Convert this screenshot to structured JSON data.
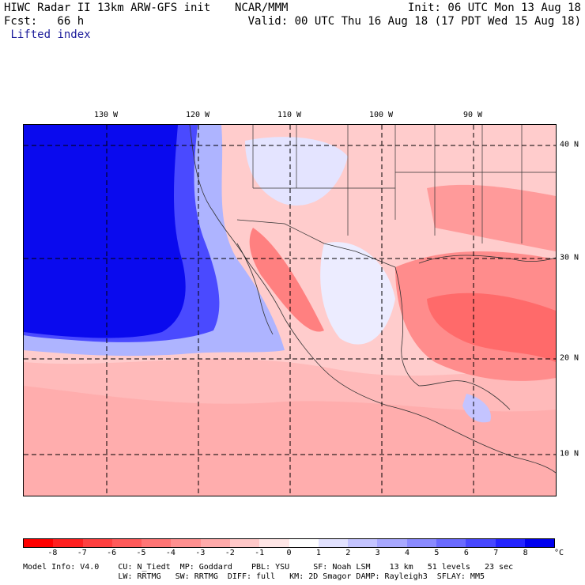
{
  "header": {
    "line1_left": "HIWC Radar II 13km ARW-GFS init",
    "line2_left": "Fcst:   66 h",
    "field_name": "Lifted index",
    "center_label": "NCAR/MMM",
    "init": "Init: 06 UTC Mon 13 Aug 18",
    "valid": "Valid: 00 UTC Thu 16 Aug 18 (17 PDT Wed 15 Aug 18)"
  },
  "axes": {
    "longitude_labels": [
      "130 W",
      "120 W",
      "110 W",
      "100 W",
      "90 W"
    ],
    "latitude_labels": [
      "40 N",
      "30 N",
      "20 N",
      "10 N"
    ]
  },
  "colorbar": {
    "tick_labels": [
      "-8",
      "-7",
      "-6",
      "-5",
      "-4",
      "-3",
      "-2",
      "-1",
      "0",
      "1",
      "2",
      "3",
      "4",
      "5",
      "6",
      "7",
      "8"
    ],
    "unit": "°C",
    "colors": [
      "#ff0000",
      "#ff2020",
      "#ff4040",
      "#ff5a5a",
      "#ff7575",
      "#ff9090",
      "#ffaaaa",
      "#ffc8c8",
      "#ffe6e6",
      "#ffffff",
      "#e2e2ff",
      "#c4c4ff",
      "#a8a8ff",
      "#8a8aff",
      "#6a6aff",
      "#4848ff",
      "#2424ff",
      "#0000ee"
    ]
  },
  "footer": {
    "line1": "Model Info: V4.0    CU: N_Tiedt  MP: Goddard    PBL: YSU     SF: Noah LSM    13 km   51 levels   23 sec",
    "line2": "                    LW: RRTMG   SW: RRTMG  DIFF: full   KM: 2D Smagor DAMP: Rayleigh3  SFLAY: MM5"
  }
}
